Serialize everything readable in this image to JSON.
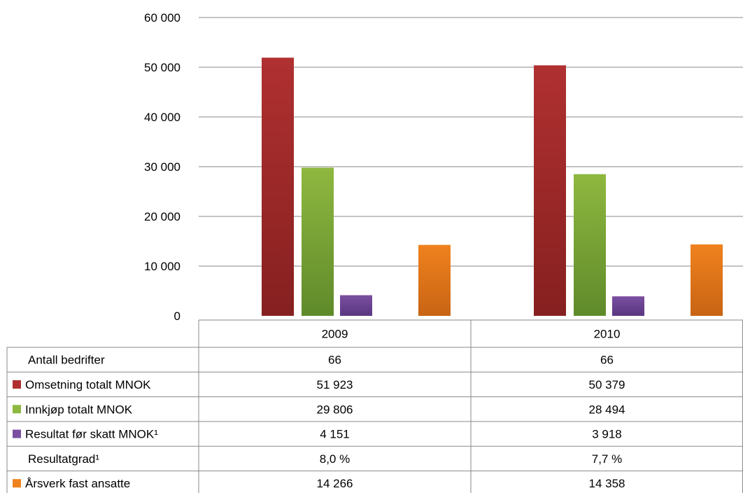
{
  "chart_data": {
    "type": "bar",
    "title": "",
    "xlabel": "",
    "ylabel": "",
    "categories": [
      "2009",
      "2010"
    ],
    "ylim": [
      0,
      60000
    ],
    "yticks": [
      "0",
      "10 000",
      "20 000",
      "30 000",
      "40 000",
      "50 000",
      "60 000"
    ],
    "ytick_values": [
      0,
      10000,
      20000,
      30000,
      40000,
      50000,
      60000
    ],
    "grid": true,
    "legend": "data-table",
    "series": [
      {
        "name": "Omsetning totalt MNOK",
        "values": [
          51923,
          50379
        ],
        "color": "#b03030",
        "color_dark": "#862020",
        "plotted": true
      },
      {
        "name": "Innkjøp totalt MNOK",
        "values": [
          29806,
          28494
        ],
        "color": "#8fb840",
        "color_dark": "#5f8a2a",
        "plotted": true
      },
      {
        "name": "Resultat før skatt MNOK¹",
        "values": [
          4151,
          3918
        ],
        "color": "#7a4fa0",
        "color_dark": "#5a3680",
        "plotted": true
      },
      {
        "name": "Resultatgrad¹",
        "values": [
          8.0,
          7.7
        ],
        "color": null,
        "color_dark": null,
        "plotted": false
      },
      {
        "name": "Årsverk fast ansatte",
        "values": [
          14266,
          14358
        ],
        "color": "#f0821e",
        "color_dark": "#c86414",
        "plotted": true
      }
    ]
  },
  "table": {
    "header": [
      "2009",
      "2010"
    ],
    "rows": [
      {
        "label": "Antall bedrifter",
        "marker": false,
        "color": null,
        "cells": [
          "66",
          "66"
        ]
      },
      {
        "label": "Omsetning totalt MNOK",
        "marker": true,
        "color": "#b03030",
        "cells": [
          "51 923",
          "50 379"
        ]
      },
      {
        "label": "Innkjøp totalt MNOK",
        "marker": true,
        "color": "#8fb840",
        "cells": [
          "29 806",
          "28 494"
        ]
      },
      {
        "label": "Resultat før skatt MNOK¹",
        "marker": true,
        "color": "#7a4fa0",
        "cells": [
          "4 151",
          "3 918"
        ]
      },
      {
        "label": "Resultatgrad¹",
        "marker": false,
        "color": null,
        "cells": [
          "8,0 %",
          "7,7 %"
        ]
      },
      {
        "label": "Årsverk fast ansatte",
        "marker": true,
        "color": "#f0821e",
        "cells": [
          "14 266",
          "14 358"
        ]
      }
    ]
  }
}
